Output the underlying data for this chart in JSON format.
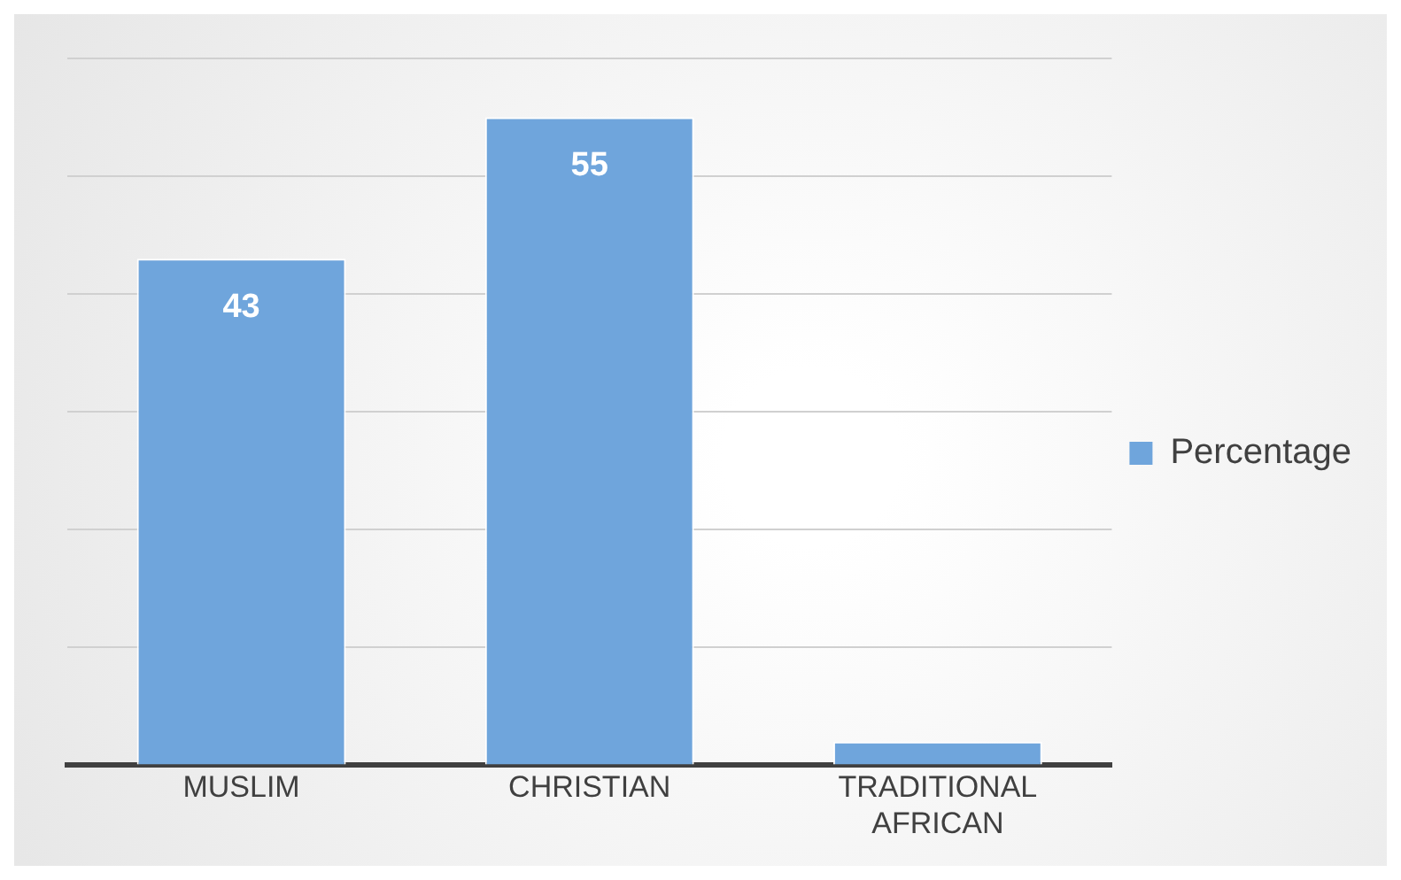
{
  "chart_data": {
    "type": "bar",
    "categories": [
      "MUSLIM",
      "CHRISTIAN",
      "TRADITIONAL AFRICAN"
    ],
    "series": [
      {
        "name": "Percentage",
        "color": "#6fa5dc",
        "values": [
          43,
          55,
          2
        ],
        "value_labels": [
          "43",
          "55",
          null
        ]
      }
    ],
    "ylim": [
      0,
      60
    ],
    "yticks": [
      {
        "value": 0,
        "label": null
      },
      {
        "value": 10,
        "label": null
      },
      {
        "value": 20,
        "label": null
      },
      {
        "value": 30,
        "label": null
      },
      {
        "value": 40,
        "label": null
      },
      {
        "value": 50,
        "label": null
      },
      {
        "value": 60,
        "label": null
      }
    ],
    "grid": "y",
    "legend": "right",
    "tick_labels": "x"
  }
}
